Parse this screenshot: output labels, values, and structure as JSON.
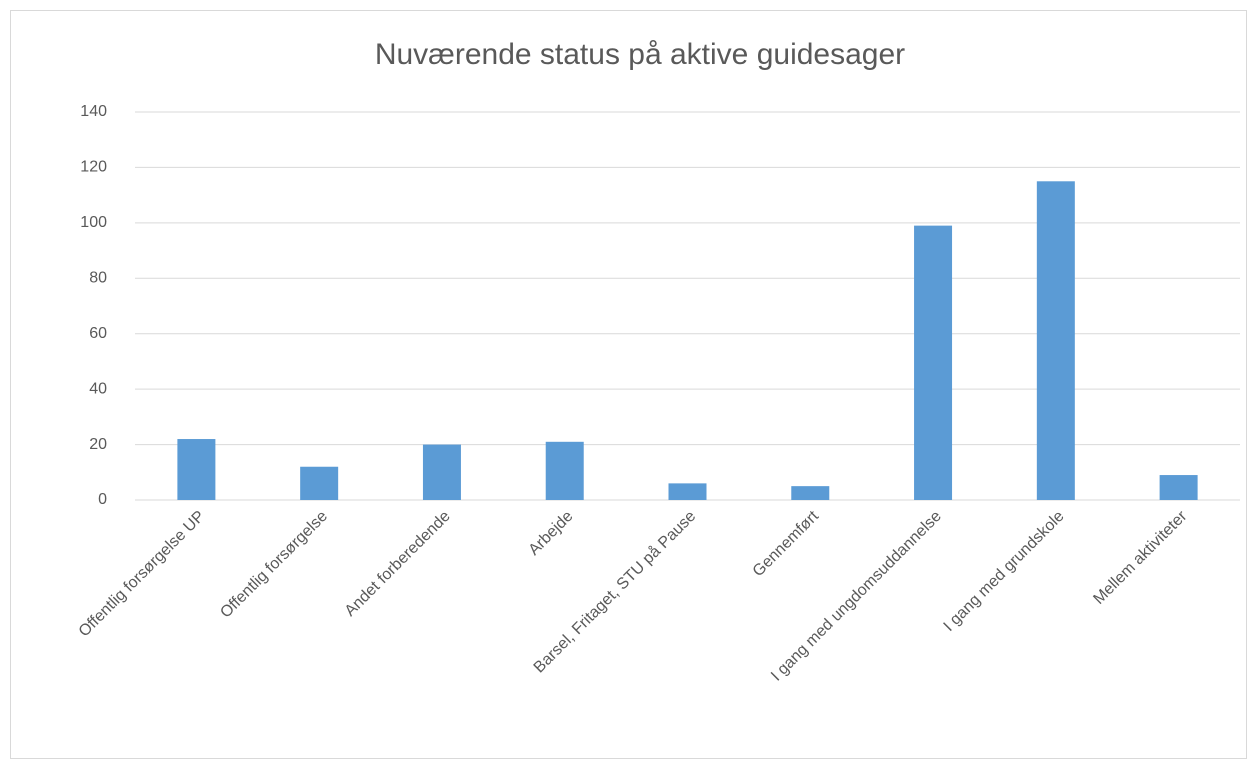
{
  "chart_data": {
    "type": "bar",
    "title": "Nuværende status på aktive guidesager",
    "categories": [
      "Offentlig forsørgelse UP",
      "Offentlig forsørgelse",
      "Andet forberedende",
      "Arbejde",
      "Barsel, Fritaget, STU på Pause",
      "Gennemført",
      "I gang med ungdomsuddannelse",
      "I gang med grundskole",
      "Mellem aktiviteter"
    ],
    "values": [
      22,
      12,
      20,
      21,
      6,
      5,
      99,
      115,
      9
    ],
    "color": "#5b9bd5",
    "ylim": [
      0,
      140
    ],
    "yticks": [
      0,
      20,
      40,
      60,
      80,
      100,
      120,
      140
    ],
    "grid": true
  }
}
